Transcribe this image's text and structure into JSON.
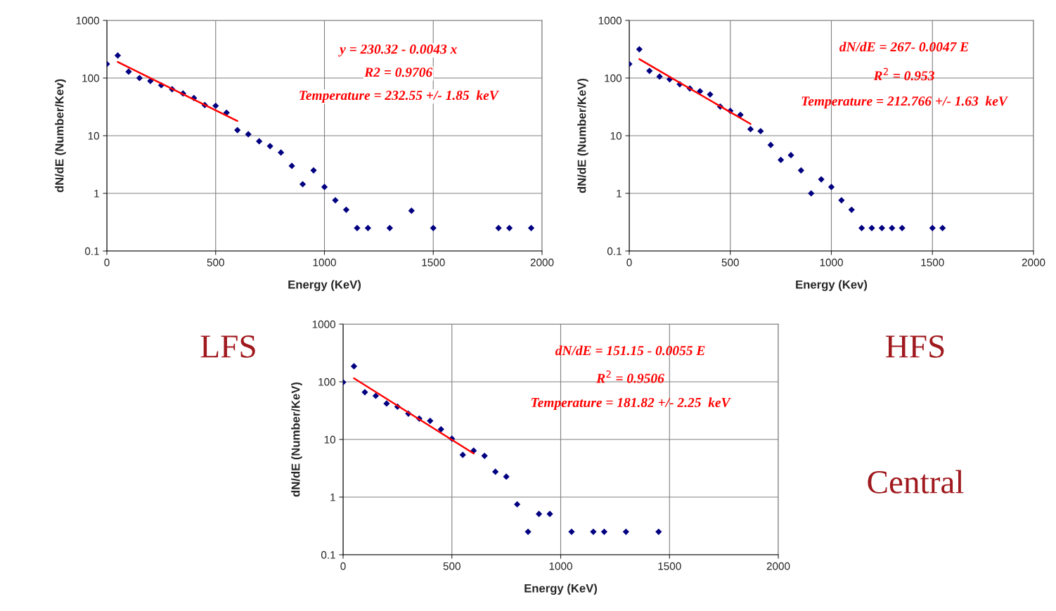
{
  "chart_data": [
    {
      "type": "scatter",
      "xlabel": "Energy (KeV)",
      "ylabel": "dN/dE (Number/Kev)",
      "log": "y",
      "grid": true,
      "legend": false,
      "marker": "diamond",
      "xlim": [
        0,
        2000
      ],
      "xticks": [
        0,
        500,
        1000,
        1500,
        2000
      ],
      "ylim": [
        0.1,
        1000
      ],
      "yticks": [
        0.1,
        1,
        10,
        100,
        1000
      ],
      "annotations": [
        "y = 230.32 - 0.0043 x",
        "R2 = 0.9706",
        "Temperature = 232.55 +/- 1.85  keV",
        "LFS"
      ],
      "series": [
        {
          "color": "#000080",
          "x": [
            0,
            50,
            100,
            150,
            200,
            250,
            300,
            350,
            400,
            450,
            500,
            550,
            600,
            650,
            700,
            750,
            800,
            850,
            900,
            950,
            1000,
            1050,
            1100,
            1150,
            1200,
            1300,
            1400,
            1500,
            1800,
            1850,
            1950
          ],
          "values": [
            175,
            246,
            129,
            100,
            89,
            75,
            64,
            54,
            45,
            34,
            33,
            25,
            12.5,
            10.6,
            8,
            6.6,
            5.1,
            3.0,
            1.44,
            2.5,
            1.29,
            0.76,
            0.52,
            0.25,
            0.25,
            0.25,
            0.5,
            0.25,
            0.25,
            0.25,
            0.25
          ]
        },
        {
          "type": "line",
          "color": "#ff0000",
          "marker": "none",
          "x": [
            50,
            600
          ],
          "values": [
            190,
            18
          ]
        }
      ]
    },
    {
      "type": "scatter",
      "xlabel": "Energy (Kev)",
      "ylabel": "dN/dE (Number/KeV)",
      "log": "y",
      "grid": true,
      "legend": false,
      "marker": "diamond",
      "xlim": [
        0,
        2000
      ],
      "xticks": [
        0,
        500,
        1000,
        1500,
        2000
      ],
      "ylim": [
        0.1,
        1000
      ],
      "yticks": [
        0.1,
        1,
        10,
        100,
        1000
      ],
      "annotations": [
        "dN/dE = 267- 0.0047 E",
        "R$^{2}$ = 0.953",
        "Temperature = 212.766 +/- 1.63  keV",
        "HFS"
      ],
      "series": [
        {
          "color": "#000080",
          "x": [
            0,
            50,
            100,
            150,
            200,
            250,
            300,
            350,
            400,
            450,
            500,
            550,
            600,
            650,
            700,
            750,
            800,
            850,
            900,
            950,
            1000,
            1050,
            1100,
            1150,
            1200,
            1250,
            1300,
            1350,
            1500,
            1550
          ],
          "values": [
            175,
            316,
            133,
            106,
            95,
            78,
            66,
            59,
            52,
            32,
            27,
            23,
            13,
            12,
            6.9,
            3.8,
            4.6,
            2.5,
            1.0,
            1.75,
            1.29,
            0.76,
            0.52,
            0.25,
            0.25,
            0.25,
            0.25,
            0.25,
            0.25,
            0.25
          ]
        },
        {
          "type": "line",
          "color": "#ff0000",
          "marker": "none",
          "x": [
            50,
            600
          ],
          "values": [
            213,
            16
          ]
        }
      ]
    },
    {
      "type": "scatter",
      "xlabel": "Energy (KeV)",
      "ylabel": "dN/dE (Number/KeV)",
      "log": "y",
      "grid": true,
      "legend": false,
      "marker": "diamond",
      "xlim": [
        0,
        2000
      ],
      "xticks": [
        0,
        500,
        1000,
        1500,
        2000
      ],
      "ylim": [
        0.1,
        1000
      ],
      "yticks": [
        0.1,
        1,
        10,
        100,
        1000
      ],
      "annotations": [
        "dN/dE = 151.15 - 0.0055 E",
        "R$^{2}$ = 0.9506",
        "Temperature = 181.82 +/- 2.25  keV",
        "Central"
      ],
      "series": [
        {
          "color": "#000080",
          "x": [
            0,
            50,
            100,
            150,
            200,
            250,
            300,
            350,
            400,
            450,
            500,
            550,
            600,
            650,
            700,
            750,
            800,
            850,
            900,
            950,
            1050,
            1150,
            1200,
            1300,
            1450
          ],
          "values": [
            98,
            186,
            66,
            57,
            42,
            37,
            28,
            23,
            21,
            15,
            10.3,
            5.4,
            6.4,
            5.2,
            2.75,
            2.26,
            0.75,
            0.25,
            0.51,
            0.51,
            0.25,
            0.25,
            0.25,
            0.25,
            0.25
          ]
        },
        {
          "type": "line",
          "color": "#ff0000",
          "marker": "none",
          "x": [
            50,
            600
          ],
          "values": [
            115,
            5.7
          ]
        }
      ]
    }
  ]
}
